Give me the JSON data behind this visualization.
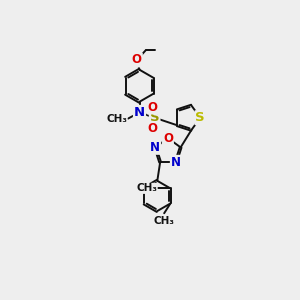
{
  "background_color": "#eeeeee",
  "atom_colors": {
    "C": "#000000",
    "N": "#0000cc",
    "O": "#dd0000",
    "S_thio": "#bbbb00",
    "S_sulfonyl": "#999900"
  },
  "bond_color": "#111111",
  "bond_width": 1.4,
  "font_size": 8.5,
  "fig_width": 3.0,
  "fig_height": 3.0,
  "dpi": 100,
  "xlim": [
    0,
    10
  ],
  "ylim": [
    0,
    13
  ]
}
